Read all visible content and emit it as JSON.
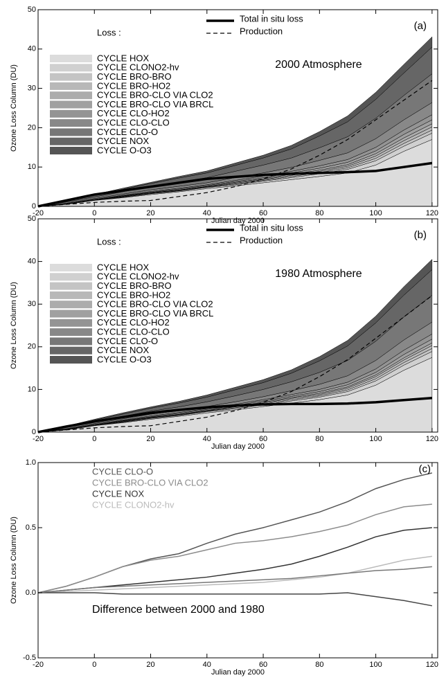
{
  "chart_data": [
    {
      "type": "stacked_area",
      "panel_label": "(a)",
      "annotation": "2000 Atmosphere",
      "legend_title": "Loss :",
      "x_label": "Julian day 2000",
      "y_label": "Ozone Loss Column (DU)",
      "xlim": [
        -20,
        122
      ],
      "xticks": [
        -20,
        0,
        20,
        40,
        60,
        80,
        100,
        120
      ],
      "ylim": [
        0,
        50
      ],
      "yticks": [
        0,
        10,
        20,
        30,
        40,
        50
      ],
      "x": [
        -20,
        -10,
        0,
        10,
        20,
        30,
        40,
        50,
        60,
        70,
        80,
        90,
        100,
        110,
        120
      ],
      "series": [
        {
          "name": "CYCLE HOX",
          "color": "#dcdcdc",
          "values": [
            0,
            0.5,
            1.5,
            2.2,
            3,
            3.7,
            4.5,
            5.2,
            6,
            6.8,
            7.6,
            8.5,
            10.5,
            14,
            17
          ]
        },
        {
          "name": "CYCLE CLONO2-hv",
          "color": "#d0d0d0",
          "values": [
            0,
            0.1,
            0.1,
            0.1,
            0.2,
            0.2,
            0.3,
            0.3,
            0.4,
            0.5,
            0.7,
            0.9,
            1.1,
            1.3,
            1.6
          ]
        },
        {
          "name": "CYCLE BRO-BRO",
          "color": "#c4c4c4",
          "values": [
            0,
            0,
            0,
            0.1,
            0.1,
            0.1,
            0.1,
            0.2,
            0.2,
            0.3,
            0.3,
            0.4,
            0.6,
            0.7,
            0.8
          ]
        },
        {
          "name": "CYCLE BRO-HO2",
          "color": "#b8b8b8",
          "values": [
            0,
            0,
            0,
            0.1,
            0.1,
            0.1,
            0.1,
            0.2,
            0.2,
            0.3,
            0.3,
            0.4,
            0.6,
            0.7,
            0.8
          ]
        },
        {
          "name": "CYCLE BRO-CLO VIA CLO2",
          "color": "#acacac",
          "values": [
            0,
            0,
            0,
            0.1,
            0.1,
            0.1,
            0.1,
            0.2,
            0.2,
            0.3,
            0.3,
            0.4,
            0.6,
            0.7,
            0.8
          ]
        },
        {
          "name": "CYCLE BRO-CLO VIA BRCL",
          "color": "#a0a0a0",
          "values": [
            0,
            0,
            0.1,
            0.1,
            0.1,
            0.2,
            0.2,
            0.2,
            0.3,
            0.3,
            0.5,
            0.6,
            0.7,
            0.9,
            1.0
          ]
        },
        {
          "name": "CYCLE CLO-HO2",
          "color": "#949494",
          "values": [
            0,
            0.1,
            0.1,
            0.1,
            0.2,
            0.2,
            0.2,
            0.3,
            0.4,
            0.4,
            0.6,
            0.7,
            0.9,
            1.1,
            1.3
          ]
        },
        {
          "name": "CYCLE CLO-CLO",
          "color": "#888888",
          "values": [
            0,
            0.1,
            0.2,
            0.3,
            0.4,
            0.5,
            0.5,
            0.7,
            0.8,
            1.0,
            1.4,
            1.7,
            2.2,
            2.6,
            3.1
          ]
        },
        {
          "name": "CYCLE CLO-O",
          "color": "#777777",
          "values": [
            0,
            0.3,
            0.4,
            0.6,
            0.8,
            1.1,
            1.3,
            1.6,
            2.0,
            2.4,
            3.2,
            4.1,
            5.2,
            6.2,
            7.3
          ]
        },
        {
          "name": "CYCLE NOX",
          "color": "#666666",
          "values": [
            0,
            0.3,
            0.4,
            0.6,
            0.8,
            1.0,
            1.2,
            1.5,
            1.8,
            2.3,
            3.0,
            3.8,
            4.8,
            5.7,
            6.8
          ]
        },
        {
          "name": "CYCLE O-O3",
          "color": "#555555",
          "values": [
            0,
            0.1,
            0.2,
            0.3,
            0.3,
            0.4,
            0.5,
            0.6,
            0.7,
            0.9,
            1.1,
            1.5,
            1.8,
            2.2,
            2.6
          ]
        }
      ],
      "lines": [
        {
          "name": "Total in situ loss",
          "color": "#000000",
          "style": "solid",
          "stroke_width": 3.5,
          "values": [
            0,
            1.5,
            3,
            4,
            5,
            6,
            7,
            7.5,
            8,
            8.3,
            8.5,
            8.7,
            9,
            10,
            11
          ]
        },
        {
          "name": "Production",
          "color": "#000000",
          "style": "dashed",
          "stroke_width": 1.2,
          "values": [
            0,
            0.5,
            1,
            1.3,
            1.5,
            2.5,
            3.5,
            5,
            7,
            9.5,
            13,
            17,
            22,
            27,
            32
          ]
        }
      ]
    },
    {
      "type": "stacked_area",
      "panel_label": "(b)",
      "annotation": "1980 Atmosphere",
      "legend_title": "Loss :",
      "x_label": "Julian day 2000",
      "y_label": "Ozone Loss Column (DU)",
      "xlim": [
        -20,
        122
      ],
      "xticks": [
        -20,
        0,
        20,
        40,
        60,
        80,
        100,
        120
      ],
      "ylim": [
        0,
        50
      ],
      "yticks": [
        0,
        10,
        20,
        30,
        40,
        50
      ],
      "x": [
        -20,
        -10,
        0,
        10,
        20,
        30,
        40,
        50,
        60,
        70,
        80,
        90,
        100,
        110,
        120
      ],
      "series": [
        {
          "name": "CYCLE HOX",
          "color": "#dcdcdc",
          "values": [
            0,
            0.5,
            1.5,
            2.2,
            3,
            3.7,
            4.5,
            5.2,
            6,
            6.8,
            7.6,
            8.7,
            11,
            14.5,
            17.5
          ]
        },
        {
          "name": "CYCLE CLONO2-hv",
          "color": "#d0d0d0",
          "values": [
            0,
            0.1,
            0.1,
            0.1,
            0.2,
            0.2,
            0.3,
            0.3,
            0.4,
            0.5,
            0.6,
            0.8,
            1.0,
            1.2,
            1.4
          ]
        },
        {
          "name": "CYCLE BRO-BRO",
          "color": "#c4c4c4",
          "values": [
            0,
            0,
            0,
            0.1,
            0.1,
            0.1,
            0.1,
            0.2,
            0.2,
            0.3,
            0.3,
            0.4,
            0.5,
            0.6,
            0.7
          ]
        },
        {
          "name": "CYCLE BRO-HO2",
          "color": "#b8b8b8",
          "values": [
            0,
            0,
            0,
            0.1,
            0.1,
            0.1,
            0.1,
            0.2,
            0.2,
            0.3,
            0.3,
            0.4,
            0.5,
            0.6,
            0.7
          ]
        },
        {
          "name": "CYCLE BRO-CLO VIA CLO2",
          "color": "#acacac",
          "values": [
            0,
            0,
            0,
            0.1,
            0.1,
            0.1,
            0.1,
            0.1,
            0.2,
            0.2,
            0.3,
            0.3,
            0.4,
            0.5,
            0.6
          ]
        },
        {
          "name": "CYCLE BRO-CLO VIA BRCL",
          "color": "#a0a0a0",
          "values": [
            0,
            0,
            0.1,
            0.1,
            0.1,
            0.2,
            0.2,
            0.2,
            0.3,
            0.3,
            0.4,
            0.5,
            0.6,
            0.8,
            0.9
          ]
        },
        {
          "name": "CYCLE CLO-HO2",
          "color": "#949494",
          "values": [
            0,
            0.1,
            0.1,
            0.1,
            0.2,
            0.2,
            0.2,
            0.3,
            0.3,
            0.4,
            0.5,
            0.6,
            0.8,
            1.0,
            1.2
          ]
        },
        {
          "name": "CYCLE CLO-CLO",
          "color": "#888888",
          "values": [
            0,
            0.1,
            0.2,
            0.3,
            0.4,
            0.4,
            0.5,
            0.6,
            0.7,
            0.9,
            1.2,
            1.5,
            2.0,
            2.4,
            2.8
          ]
        },
        {
          "name": "CYCLE CLO-O",
          "color": "#777777",
          "values": [
            0,
            0.3,
            0.4,
            0.6,
            0.7,
            0.9,
            1.1,
            1.4,
            1.7,
            2.1,
            2.8,
            3.6,
            4.5,
            5.4,
            6.3
          ]
        },
        {
          "name": "CYCLE NOX",
          "color": "#666666",
          "values": [
            0,
            0.2,
            0.4,
            0.5,
            0.7,
            0.9,
            1.1,
            1.4,
            1.6,
            2.0,
            2.7,
            3.4,
            4.3,
            5.1,
            6.0
          ]
        },
        {
          "name": "CYCLE O-O3",
          "color": "#555555",
          "values": [
            0,
            0.1,
            0.2,
            0.3,
            0.3,
            0.4,
            0.5,
            0.6,
            0.7,
            0.8,
            1.0,
            1.3,
            1.6,
            2.0,
            2.4
          ]
        }
      ],
      "lines": [
        {
          "name": "Total in situ loss",
          "color": "#000000",
          "style": "solid",
          "stroke_width": 3.5,
          "values": [
            0,
            1.3,
            2.5,
            3.5,
            4.5,
            5.2,
            5.8,
            6.2,
            6.5,
            6.6,
            6.6,
            6.7,
            7,
            7.5,
            8
          ]
        },
        {
          "name": "Production",
          "color": "#000000",
          "style": "dashed",
          "stroke_width": 1.2,
          "values": [
            0,
            0.5,
            1,
            1.3,
            1.5,
            2.5,
            3.5,
            5,
            7,
            9.5,
            13,
            17,
            22,
            27,
            32
          ]
        }
      ]
    },
    {
      "type": "line",
      "panel_label": "(c)",
      "annotation": "Difference between 2000 and 1980",
      "x_label": "Julian day 2000",
      "y_label": "Ozone Loss Column (DU)",
      "xlim": [
        -20,
        122
      ],
      "xticks": [
        -20,
        0,
        20,
        40,
        60,
        80,
        100,
        120
      ],
      "ylim": [
        -0.5,
        1.0
      ],
      "yticks": [
        {
          "value": -0.5,
          "label": "-0.5"
        },
        {
          "value": 0,
          "label": "0.0"
        },
        {
          "value": 0.5,
          "label": "0.5"
        },
        {
          "value": 1,
          "label": "1.0"
        }
      ],
      "x": [
        -20,
        -10,
        0,
        10,
        20,
        30,
        40,
        50,
        60,
        70,
        80,
        90,
        100,
        110,
        120
      ],
      "series": [
        {
          "name": "CYCLE CLO-O",
          "color": "#555555",
          "values": [
            0,
            0.05,
            0.12,
            0.2,
            0.26,
            0.3,
            0.38,
            0.45,
            0.5,
            0.56,
            0.62,
            0.7,
            0.8,
            0.87,
            0.92
          ]
        },
        {
          "name": "CYCLE BRO-CLO VIA CLO2",
          "color": "#8c8c8c",
          "values": [
            0,
            0.05,
            0.12,
            0.2,
            0.25,
            0.28,
            0.33,
            0.38,
            0.4,
            0.43,
            0.47,
            0.52,
            0.6,
            0.66,
            0.68
          ]
        },
        {
          "name": "CYCLE NOX",
          "color": "#333333",
          "values": [
            0,
            0.02,
            0.04,
            0.06,
            0.08,
            0.1,
            0.12,
            0.15,
            0.18,
            0.22,
            0.28,
            0.35,
            0.43,
            0.48,
            0.5
          ]
        },
        {
          "name": "CYCLE CLONO2-hv",
          "color": "#bbbbbb",
          "values": [
            0,
            0.01,
            0.02,
            0.03,
            0.04,
            0.05,
            0.06,
            0.07,
            0.08,
            0.1,
            0.12,
            0.15,
            0.2,
            0.25,
            0.28
          ]
        },
        {
          "color": "#444444",
          "values": [
            0,
            0,
            0,
            -0.01,
            -0.01,
            -0.01,
            -0.01,
            -0.01,
            -0.01,
            -0.01,
            -0.01,
            0,
            -0.03,
            -0.06,
            -0.1
          ]
        },
        {
          "color": "#777777",
          "values": [
            0,
            0.02,
            0.04,
            0.05,
            0.06,
            0.07,
            0.08,
            0.09,
            0.1,
            0.11,
            0.13,
            0.15,
            0.17,
            0.18,
            0.2
          ]
        }
      ]
    }
  ]
}
